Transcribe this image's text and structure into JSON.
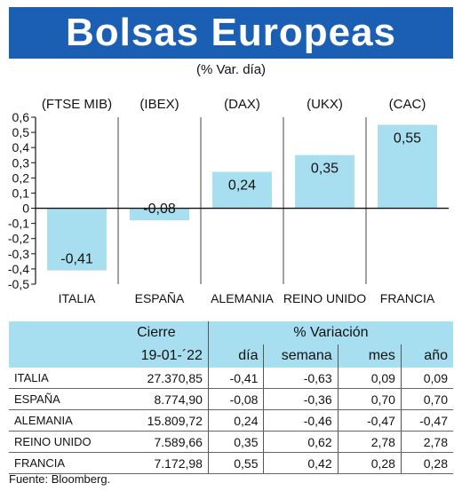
{
  "header": {
    "title": "Bolsas Europeas",
    "subtitle": "(% Var. día)"
  },
  "chart_data": {
    "type": "bar",
    "index_labels": [
      "(FTSE MIB)",
      "(IBEX)",
      "(DAX)",
      "(UKX)",
      "(CAC)"
    ],
    "categories": [
      "ITALIA",
      "ESPAÑA",
      "ALEMANIA",
      "REINO UNIDO",
      "FRANCIA"
    ],
    "values": [
      -0.41,
      -0.08,
      0.24,
      0.35,
      0.55
    ],
    "value_labels": [
      "-0,41",
      "-0,08",
      "0,24",
      "0,35",
      "0,55"
    ],
    "yticks": [
      0.6,
      0.5,
      0.4,
      0.3,
      0.2,
      0.1,
      0,
      -0.1,
      -0.2,
      -0.3,
      -0.4,
      -0.5
    ],
    "ytick_labels": [
      "0,6",
      "0,5",
      "0,4",
      "0,3",
      "0,2",
      "0,1",
      "0",
      "-0,1",
      "-0,2",
      "-0,3",
      "-0,4",
      "-0,5"
    ],
    "ylim": [
      -0.5,
      0.6
    ],
    "bar_color": "#a8dff0",
    "grid": "vertical"
  },
  "table": {
    "header_cierre": "Cierre",
    "header_variacion": "% Variación",
    "date": "19-01-´22",
    "sub_headers": [
      "día",
      "semana",
      "mes",
      "año"
    ],
    "rows": [
      {
        "name": "Italia",
        "cierre": "27.370,85",
        "dia": "-0,41",
        "semana": "-0,63",
        "mes": "0,09",
        "anio": "0,09"
      },
      {
        "name": "España",
        "cierre": "8.774,90",
        "dia": "-0,08",
        "semana": "-0,36",
        "mes": "0,70",
        "anio": "0,70"
      },
      {
        "name": "Alemania",
        "cierre": "15.809,72",
        "dia": "0,24",
        "semana": "-0,46",
        "mes": "-0,47",
        "anio": "-0,47"
      },
      {
        "name": "Reino Unido",
        "cierre": "7.589,66",
        "dia": "0,35",
        "semana": "0,62",
        "mes": "2,78",
        "anio": "2,78"
      },
      {
        "name": "Francia",
        "cierre": "7.172,98",
        "dia": "0,55",
        "semana": "0,42",
        "mes": "0,28",
        "anio": "0,28"
      }
    ]
  },
  "footer": {
    "source": "Fuente: Bloomberg."
  }
}
